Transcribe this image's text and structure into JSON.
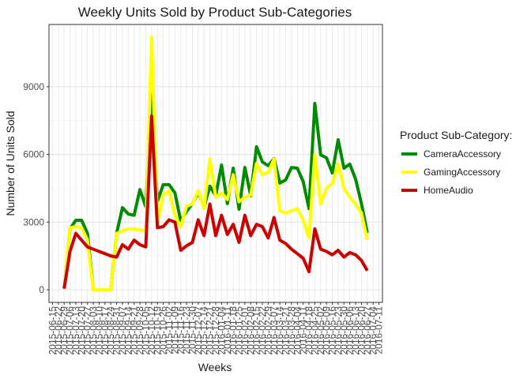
{
  "chart_data": {
    "type": "line",
    "title": "Weekly Units Sold by Product Sub-Categories",
    "x_label": "Weeks",
    "y_label": "Number of Units Sold",
    "legend_title": "Product Sub-Category:",
    "legend_position": "right",
    "grid": true,
    "categories": [
      "2015-06-15",
      "2015-06-22",
      "2015-06-29",
      "2015-07-06",
      "2015-07-13",
      "2015-07-20",
      "2015-07-27",
      "2015-08-03",
      "2015-08-10",
      "2015-08-17",
      "2015-08-24",
      "2015-08-31",
      "2015-09-07",
      "2015-09-14",
      "2015-09-21",
      "2015-09-28",
      "2015-10-05",
      "2015-10-12",
      "2015-10-19",
      "2015-10-26",
      "2015-11-02",
      "2015-11-09",
      "2015-11-16",
      "2015-11-23",
      "2015-11-30",
      "2015-12-07",
      "2015-12-14",
      "2015-12-21",
      "2015-12-28",
      "2016-01-04",
      "2016-01-11",
      "2016-01-18",
      "2016-01-25",
      "2016-02-01",
      "2016-02-08",
      "2016-02-15",
      "2016-02-22",
      "2016-02-29",
      "2016-03-07",
      "2016-03-14",
      "2016-03-21",
      "2016-03-28",
      "2016-04-04",
      "2016-04-11",
      "2016-04-18",
      "2016-04-25",
      "2016-05-02",
      "2016-05-09",
      "2016-05-16",
      "2016-05-23",
      "2016-05-30",
      "2016-06-06",
      "2016-06-13",
      "2016-06-20",
      "2016-06-27",
      "2016-07-04",
      "2016-07-11"
    ],
    "series": [
      {
        "name": "CameraAccessory",
        "color": "#008b00",
        "values": [
          null,
          null,
          50,
          2700,
          3080,
          3080,
          2500,
          0,
          0,
          0,
          0,
          2500,
          3640,
          3360,
          3300,
          4440,
          3680,
          8650,
          3920,
          4660,
          4660,
          4300,
          3050,
          3470,
          3820,
          4310,
          3680,
          4590,
          4170,
          5530,
          3820,
          5390,
          3570,
          5420,
          4170,
          6340,
          5670,
          5500,
          5810,
          4730,
          4870,
          5420,
          5390,
          4800,
          3600,
          8260,
          5980,
          5850,
          5180,
          6650,
          5390,
          5570,
          4900,
          3820,
          2520,
          null,
          null
        ]
      },
      {
        "name": "GamingAccessory",
        "color": "#ffff00",
        "values": [
          null,
          null,
          50,
          2750,
          2800,
          2750,
          2200,
          0,
          0,
          0,
          0,
          2500,
          2600,
          2700,
          2700,
          2650,
          2600,
          11200,
          3000,
          4200,
          4400,
          3300,
          2800,
          3700,
          3800,
          4400,
          3600,
          5800,
          4100,
          4300,
          4000,
          5100,
          3900,
          4100,
          4200,
          5600,
          5100,
          5200,
          5800,
          3500,
          3400,
          3500,
          3600,
          3100,
          2300,
          6000,
          3800,
          4500,
          4700,
          5600,
          4500,
          4100,
          3800,
          3400,
          2200,
          null,
          null
        ]
      },
      {
        "name": "HomeAudio",
        "color": "#cd0000",
        "values": [
          null,
          null,
          50,
          1700,
          2500,
          2200,
          1900,
          1800,
          1700,
          1600,
          1500,
          1450,
          2000,
          1800,
          2200,
          2000,
          1900,
          7700,
          2750,
          2800,
          3100,
          3000,
          1750,
          1950,
          2100,
          3100,
          2400,
          3800,
          2400,
          3300,
          2450,
          2900,
          2100,
          3300,
          2400,
          2900,
          2800,
          2300,
          3200,
          2200,
          2050,
          1800,
          1600,
          1400,
          800,
          2700,
          1800,
          1700,
          1550,
          1750,
          1450,
          1650,
          1550,
          1300,
          850,
          null,
          null
        ]
      }
    ],
    "ylim": [
      -560,
      11760
    ],
    "yticks": [
      0,
      3000,
      6000,
      9000
    ]
  }
}
